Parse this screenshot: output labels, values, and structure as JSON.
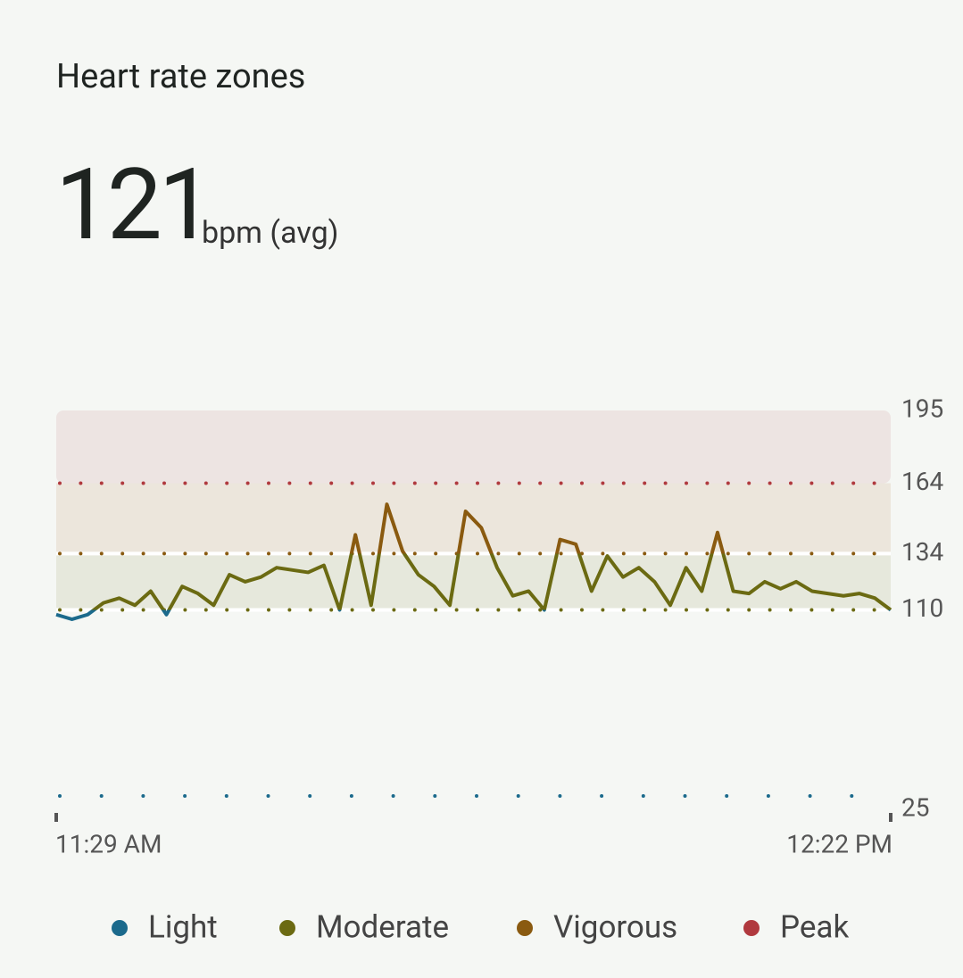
{
  "header": {
    "title": "Heart rate zones",
    "value": 121,
    "unit": "bpm (avg)"
  },
  "chart_data": {
    "type": "line",
    "categories": [
      "11:29 AM",
      null,
      null,
      null,
      null,
      null,
      null,
      null,
      null,
      null,
      null,
      null,
      null,
      null,
      null,
      null,
      null,
      null,
      null,
      null,
      null,
      null,
      null,
      null,
      null,
      null,
      null,
      null,
      null,
      null,
      null,
      null,
      null,
      null,
      null,
      null,
      null,
      null,
      null,
      null,
      null,
      null,
      null,
      null,
      null,
      null,
      null,
      null,
      null,
      null,
      null,
      null,
      null,
      "12:22 PM"
    ],
    "values": [
      108,
      106,
      108,
      113,
      115,
      112,
      118,
      108,
      120,
      117,
      112,
      125,
      122,
      124,
      128,
      127,
      126,
      129,
      110,
      142,
      112,
      155,
      135,
      125,
      120,
      112,
      152,
      145,
      128,
      116,
      118,
      110,
      140,
      138,
      118,
      133,
      124,
      128,
      122,
      112,
      128,
      118,
      143,
      118,
      117,
      122,
      119,
      122,
      118,
      117,
      116,
      117,
      115,
      110
    ],
    "ylim": [
      25,
      195
    ],
    "yticks": [
      25,
      110,
      134,
      164,
      195
    ],
    "zones": [
      {
        "name": "Light",
        "color": "#1b6a8c",
        "from": 25
      },
      {
        "name": "Moderate",
        "color": "#6b6a12",
        "from": 110
      },
      {
        "name": "Vigorous",
        "color": "#8a5a10",
        "from": 134
      },
      {
        "name": "Peak",
        "color": "#b0393e",
        "from": 164
      }
    ]
  }
}
